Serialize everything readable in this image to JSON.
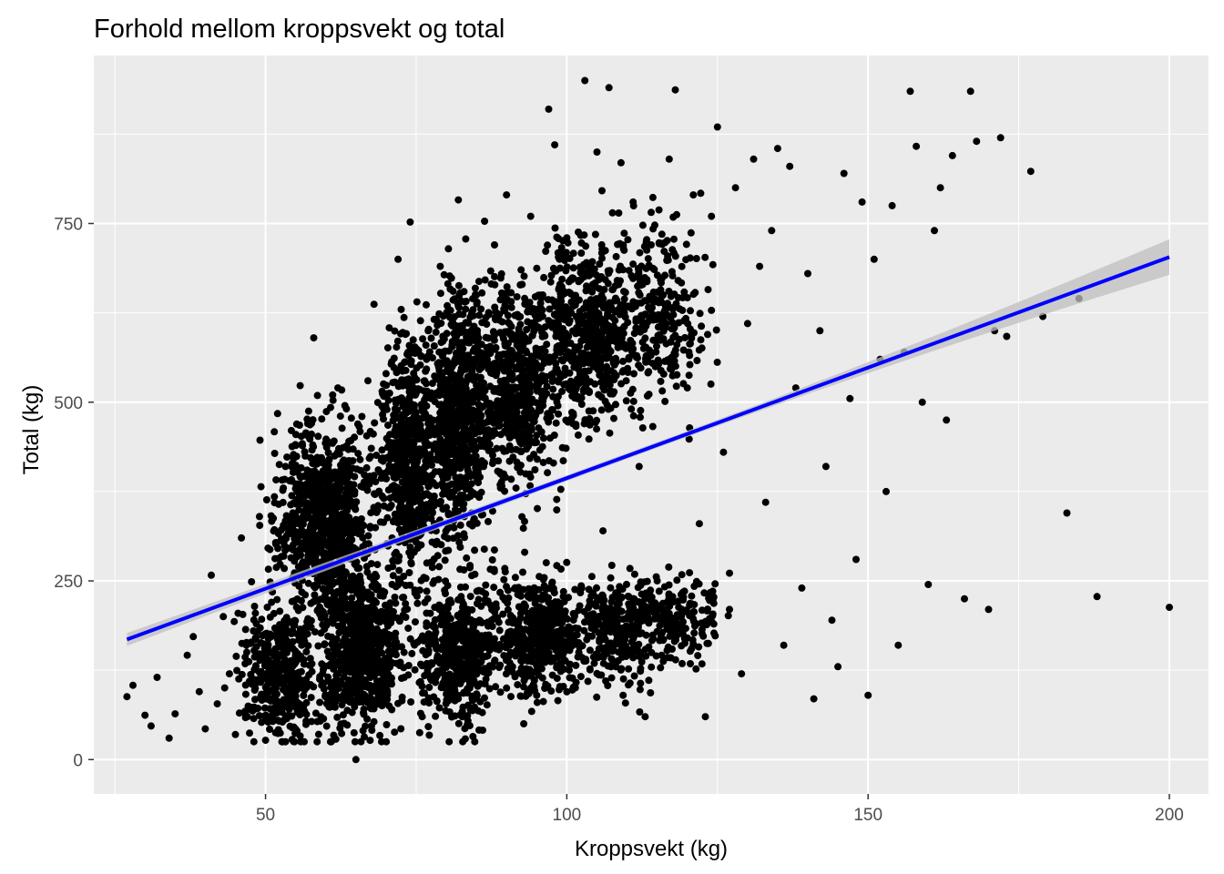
{
  "chart_data": {
    "type": "scatter",
    "title": "Forhold mellom kroppsvekt og total",
    "xlabel": "Kroppsvekt (kg)",
    "ylabel": "Total (kg)",
    "xlim": [
      21.5,
      206.5
    ],
    "ylim": [
      -48,
      985
    ],
    "x_ticks": [
      50,
      100,
      150,
      200
    ],
    "y_ticks": [
      0,
      250,
      500,
      750
    ],
    "x_minor": [
      25,
      75,
      125,
      175
    ],
    "y_minor": [
      125,
      375,
      625,
      875
    ],
    "grid": true,
    "legend": "none",
    "point_color": "#000000",
    "panel_color": "#ebebeb",
    "trend": {
      "method": "linear fit with confidence band",
      "color": "#0000ff",
      "band_color": "#bfbfbf",
      "x": [
        27,
        200
      ],
      "y": [
        168,
        703
      ],
      "band_halfwidth_ends": [
        9,
        25
      ],
      "band_halfwidth_center": 4
    },
    "points": [
      [
        27,
        88
      ],
      [
        28,
        104
      ],
      [
        30,
        62
      ],
      [
        31,
        47
      ],
      [
        32,
        115
      ],
      [
        34,
        30
      ],
      [
        35,
        64
      ],
      [
        37,
        146
      ],
      [
        38,
        172
      ],
      [
        39,
        95
      ],
      [
        40,
        43
      ],
      [
        41,
        258
      ],
      [
        42,
        78
      ],
      [
        43,
        200
      ],
      [
        44,
        120
      ],
      [
        45,
        35
      ],
      [
        46,
        310
      ],
      [
        47,
        60
      ],
      [
        48,
        180
      ],
      [
        49,
        340
      ],
      [
        50,
        27
      ],
      [
        51,
        220
      ],
      [
        52,
        484
      ],
      [
        53,
        150
      ],
      [
        54,
        390
      ],
      [
        55,
        40
      ],
      [
        56,
        300
      ],
      [
        57,
        470
      ],
      [
        58,
        590
      ],
      [
        59,
        80
      ],
      [
        60,
        410
      ],
      [
        61,
        250
      ],
      [
        62,
        520
      ],
      [
        63,
        130
      ],
      [
        64,
        360
      ],
      [
        65,
        0
      ],
      [
        66,
        480
      ],
      [
        67,
        200
      ],
      [
        68,
        637
      ],
      [
        69,
        95
      ],
      [
        70,
        540
      ],
      [
        71,
        310
      ],
      [
        72,
        700
      ],
      [
        73,
        150
      ],
      [
        74,
        752
      ],
      [
        75,
        420
      ],
      [
        76,
        60
      ],
      [
        77,
        600
      ],
      [
        78,
        250
      ],
      [
        79,
        690
      ],
      [
        80,
        110
      ],
      [
        81,
        520
      ],
      [
        82,
        783
      ],
      [
        83,
        340
      ],
      [
        84,
        70
      ],
      [
        85,
        650
      ],
      [
        86,
        460
      ],
      [
        87,
        170
      ],
      [
        88,
        720
      ],
      [
        89,
        380
      ],
      [
        90,
        790
      ],
      [
        91,
        130
      ],
      [
        92,
        560
      ],
      [
        93,
        290
      ],
      [
        94,
        760
      ],
      [
        95,
        90
      ],
      [
        96,
        620
      ],
      [
        97,
        910
      ],
      [
        98,
        860
      ],
      [
        99,
        200
      ],
      [
        100,
        730
      ],
      [
        101,
        470
      ],
      [
        102,
        150
      ],
      [
        103,
        950
      ],
      [
        104,
        690
      ],
      [
        105,
        850
      ],
      [
        106,
        320
      ],
      [
        107,
        940
      ],
      [
        108,
        560
      ],
      [
        109,
        835
      ],
      [
        110,
        180
      ],
      [
        111,
        780
      ],
      [
        112,
        410
      ],
      [
        113,
        60
      ],
      [
        114,
        720
      ],
      [
        115,
        250
      ],
      [
        116,
        650
      ],
      [
        117,
        840
      ],
      [
        118,
        937
      ],
      [
        119,
        200
      ],
      [
        120,
        520
      ],
      [
        121,
        790
      ],
      [
        122,
        330
      ],
      [
        123,
        60
      ],
      [
        124,
        760
      ],
      [
        125,
        885
      ],
      [
        126,
        430
      ],
      [
        127,
        210
      ],
      [
        128,
        800
      ],
      [
        129,
        120
      ],
      [
        130,
        610
      ],
      [
        131,
        840
      ],
      [
        132,
        690
      ],
      [
        133,
        360
      ],
      [
        134,
        740
      ],
      [
        135,
        855
      ],
      [
        136,
        160
      ],
      [
        137,
        830
      ],
      [
        138,
        520
      ],
      [
        139,
        240
      ],
      [
        140,
        680
      ],
      [
        141,
        85
      ],
      [
        142,
        600
      ],
      [
        143,
        410
      ],
      [
        144,
        195
      ],
      [
        145,
        130
      ],
      [
        146,
        820
      ],
      [
        147,
        505
      ],
      [
        148,
        280
      ],
      [
        149,
        780
      ],
      [
        150,
        90
      ],
      [
        151,
        700
      ],
      [
        152,
        560
      ],
      [
        153,
        375
      ],
      [
        154,
        775
      ],
      [
        155,
        160
      ],
      [
        156,
        570
      ],
      [
        157,
        935
      ],
      [
        158,
        858
      ],
      [
        159,
        500
      ],
      [
        160,
        245
      ],
      [
        161,
        740
      ],
      [
        162,
        800
      ],
      [
        163,
        475
      ],
      [
        164,
        845
      ],
      [
        166,
        225
      ],
      [
        167,
        935
      ],
      [
        168,
        865
      ],
      [
        170,
        210
      ],
      [
        171,
        600
      ],
      [
        172,
        870
      ],
      [
        173,
        592
      ],
      [
        177,
        823
      ],
      [
        179,
        620
      ],
      [
        183,
        345
      ],
      [
        185,
        645
      ],
      [
        188,
        228
      ],
      [
        200,
        213
      ]
    ]
  }
}
